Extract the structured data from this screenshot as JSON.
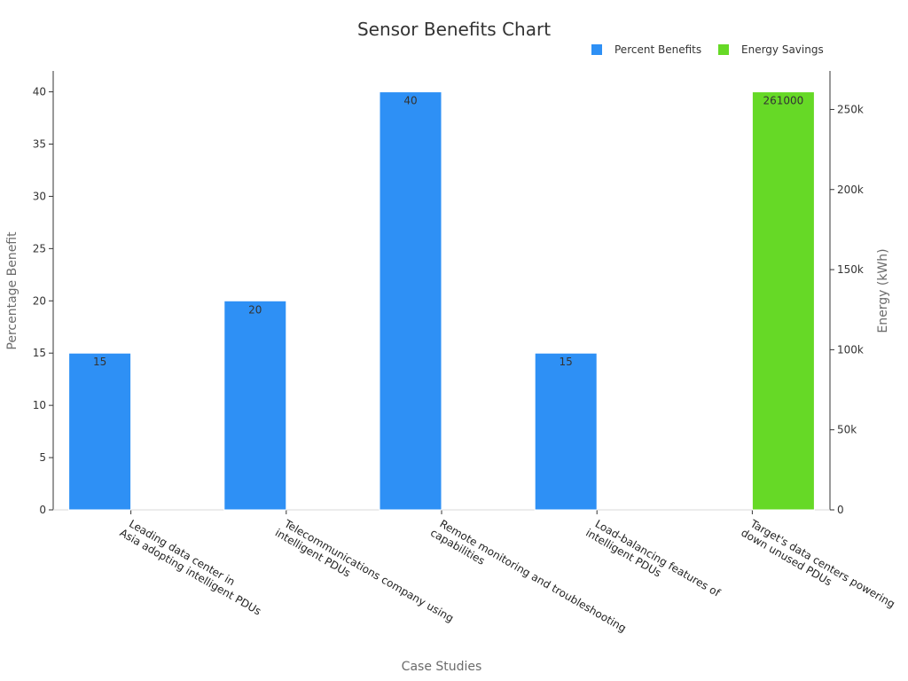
{
  "chart_data": {
    "type": "bar",
    "title": "Sensor Benefits Chart",
    "xlabel": "Case Studies",
    "ylabel": "Percentage Benefit",
    "ylabel_right": "Energy (kWh)",
    "categories": [
      [
        "Leading data center in",
        "Asia adopting intelligent PDUs"
      ],
      [
        "Telecommunications company using",
        "intelligent PDUs"
      ],
      [
        "Remote monitoring and troubleshooting",
        "capabilities"
      ],
      [
        "Load-balancing features of",
        "intelligent PDUs"
      ],
      [
        "Target's data centers powering",
        "down unused PDUs"
      ]
    ],
    "series": [
      {
        "name": "Percent Benefits",
        "axis": "left",
        "color": "#2e90f5",
        "values": [
          15,
          20,
          40,
          15,
          null
        ]
      },
      {
        "name": "Energy Savings",
        "axis": "right",
        "color": "#66d926",
        "values": [
          null,
          null,
          null,
          null,
          261000
        ]
      }
    ],
    "ylim": [
      0,
      42
    ],
    "ylim_right": [
      0,
      274050
    ],
    "yticks": [
      "0",
      "5",
      "10",
      "15",
      "20",
      "25",
      "30",
      "35",
      "40"
    ],
    "yticks_right": [
      {
        "value": 0,
        "label": "0"
      },
      {
        "value": 50000,
        "label": "50k"
      },
      {
        "value": 100000,
        "label": "100k"
      },
      {
        "value": 150000,
        "label": "150k"
      },
      {
        "value": 200000,
        "label": "200k"
      },
      {
        "value": 250000,
        "label": "250k"
      }
    ],
    "legend_position": "top-right",
    "grid": false
  }
}
